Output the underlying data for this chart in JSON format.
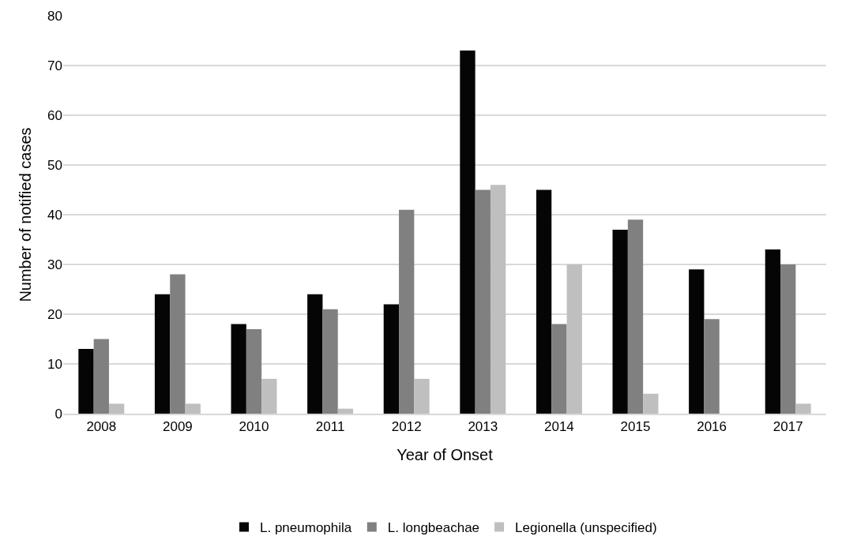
{
  "chart_data": {
    "type": "bar",
    "xlabel": "Year of Onset",
    "ylabel": "Number of notified cases",
    "categories": [
      "2008",
      "2009",
      "2010",
      "2011",
      "2012",
      "2013",
      "2014",
      "2015",
      "2016",
      "2017"
    ],
    "series": [
      {
        "name": "L. pneumophila",
        "color": "#050505",
        "values": [
          13,
          24,
          18,
          24,
          22,
          73,
          45,
          37,
          29,
          33
        ]
      },
      {
        "name": "L. longbeachae",
        "color": "#808080",
        "values": [
          15,
          28,
          17,
          21,
          41,
          45,
          18,
          39,
          19,
          30
        ]
      },
      {
        "name": "Legionella (unspecified)",
        "color": "#bfbfbf",
        "values": [
          2,
          2,
          7,
          1,
          7,
          46,
          30,
          4,
          0,
          2
        ]
      }
    ],
    "ylim": [
      0,
      80
    ],
    "yticks": [
      0,
      10,
      20,
      30,
      40,
      50,
      60,
      70,
      80
    ],
    "grid": "y",
    "legend": "bottom"
  }
}
